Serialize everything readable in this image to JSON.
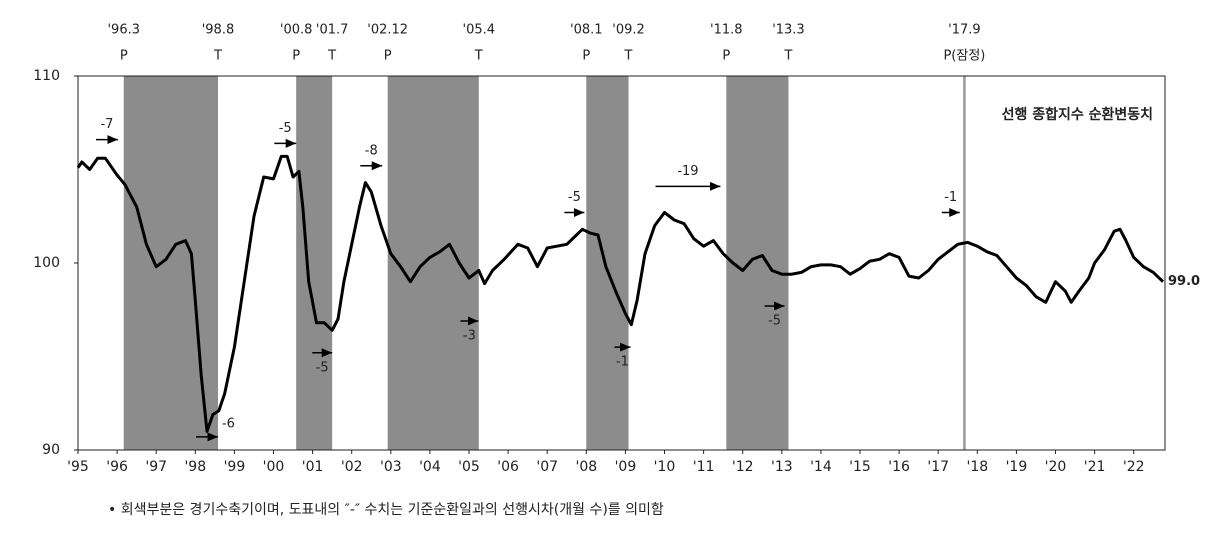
{
  "chart_data": {
    "type": "line",
    "xlim": [
      1995,
      2022.8
    ],
    "ylim": [
      90,
      110
    ],
    "yticks": [
      90,
      100,
      110
    ],
    "xticks": [
      {
        "value": 1995,
        "label": "'95"
      },
      {
        "value": 1996,
        "label": "'96"
      },
      {
        "value": 1997,
        "label": "'97"
      },
      {
        "value": 1998,
        "label": "'98"
      },
      {
        "value": 1999,
        "label": "'99"
      },
      {
        "value": 2000,
        "label": "'00"
      },
      {
        "value": 2001,
        "label": "'01"
      },
      {
        "value": 2002,
        "label": "'02"
      },
      {
        "value": 2003,
        "label": "'03"
      },
      {
        "value": 2004,
        "label": "'04"
      },
      {
        "value": 2005,
        "label": "'05"
      },
      {
        "value": 2006,
        "label": "'06"
      },
      {
        "value": 2007,
        "label": "'07"
      },
      {
        "value": 2008,
        "label": "'08"
      },
      {
        "value": 2009,
        "label": "'09"
      },
      {
        "value": 2010,
        "label": "'10"
      },
      {
        "value": 2011,
        "label": "'11"
      },
      {
        "value": 2012,
        "label": "'12"
      },
      {
        "value": 2013,
        "label": "'13"
      },
      {
        "value": 2014,
        "label": "'14"
      },
      {
        "value": 2015,
        "label": "'15"
      },
      {
        "value": 2016,
        "label": "'16"
      },
      {
        "value": 2017,
        "label": "'17"
      },
      {
        "value": 2018,
        "label": "'18"
      },
      {
        "value": 2019,
        "label": "'19"
      },
      {
        "value": 2020,
        "label": "'20"
      },
      {
        "value": 2021,
        "label": "'21"
      },
      {
        "value": 2022,
        "label": "'22"
      }
    ],
    "grid": false,
    "shade_color": "#8c8c8c",
    "turning_points": [
      {
        "label": "'96.3",
        "phase": "P",
        "x": 1996.17
      },
      {
        "label": "'98.8",
        "phase": "T",
        "x": 1998.58
      },
      {
        "label": "'00.8",
        "phase": "P",
        "x": 2000.58
      },
      {
        "label": "'01.7",
        "phase": "T",
        "x": 2001.5
      },
      {
        "label": "'02.12",
        "phase": "P",
        "x": 2002.92
      },
      {
        "label": "'05.4",
        "phase": "T",
        "x": 2005.25
      },
      {
        "label": "'08.1",
        "phase": "P",
        "x": 2008.0
      },
      {
        "label": "'09.2",
        "phase": "T",
        "x": 2009.08
      },
      {
        "label": "'11.8",
        "phase": "P",
        "x": 2011.58
      },
      {
        "label": "'13.3",
        "phase": "T",
        "x": 2013.17
      },
      {
        "label": "'17.9",
        "phase": "P(잠정)",
        "x": 2017.67
      }
    ],
    "leads": [
      {
        "label": "-7",
        "from": 1995.46,
        "to": 1996.02,
        "y": 106.6,
        "label_pos": "above"
      },
      {
        "label": "-6",
        "from": 1998.02,
        "to": 1998.58,
        "y": 90.7,
        "label_pos": "right"
      },
      {
        "label": "-5",
        "from": 2000.02,
        "to": 2000.58,
        "y": 106.4,
        "label_pos": "above"
      },
      {
        "label": "-5",
        "from": 2000.99,
        "to": 2001.5,
        "y": 95.2,
        "label_pos": "below"
      },
      {
        "label": "-8",
        "from": 2002.22,
        "to": 2002.78,
        "y": 105.2,
        "label_pos": "above"
      },
      {
        "label": "-3",
        "from": 2004.78,
        "to": 2005.24,
        "y": 96.9,
        "label_pos": "below"
      },
      {
        "label": "-5",
        "from": 2007.44,
        "to": 2007.95,
        "y": 102.7,
        "label_pos": "above"
      },
      {
        "label": "-1",
        "from": 2008.72,
        "to": 2009.13,
        "y": 95.5,
        "label_pos": "below"
      },
      {
        "label": "-19",
        "from": 2009.77,
        "to": 2011.43,
        "y": 104.1,
        "label_pos": "above"
      },
      {
        "label": "-5",
        "from": 2012.56,
        "to": 2013.07,
        "y": 97.7,
        "label_pos": "below"
      },
      {
        "label": "-1",
        "from": 2017.09,
        "to": 2017.55,
        "y": 102.7,
        "label_pos": "above"
      }
    ],
    "x": [
      1995.0,
      1995.1,
      1995.3,
      1995.5,
      1995.7,
      1996.0,
      1996.2,
      1996.5,
      1996.75,
      1997.0,
      1997.25,
      1997.5,
      1997.75,
      1997.9,
      1998.0,
      1998.15,
      1998.3,
      1998.45,
      1998.6,
      1998.75,
      1999.0,
      1999.25,
      1999.5,
      1999.75,
      2000.0,
      2000.2,
      2000.35,
      2000.5,
      2000.65,
      2000.75,
      2000.9,
      2001.1,
      2001.3,
      2001.5,
      2001.65,
      2001.8,
      2002.0,
      2002.2,
      2002.35,
      2002.5,
      2002.75,
      2003.0,
      2003.25,
      2003.5,
      2003.75,
      2004.0,
      2004.25,
      2004.5,
      2004.75,
      2005.0,
      2005.25,
      2005.4,
      2005.6,
      2005.9,
      2006.25,
      2006.5,
      2006.75,
      2007.0,
      2007.5,
      2007.75,
      2007.9,
      2008.1,
      2008.3,
      2008.5,
      2008.75,
      2009.0,
      2009.15,
      2009.3,
      2009.5,
      2009.75,
      2010.0,
      2010.25,
      2010.5,
      2010.75,
      2011.0,
      2011.25,
      2011.5,
      2011.75,
      2012.0,
      2012.25,
      2012.5,
      2012.75,
      2013.0,
      2013.25,
      2013.5,
      2013.75,
      2014.0,
      2014.25,
      2014.5,
      2014.75,
      2015.0,
      2015.25,
      2015.5,
      2015.75,
      2016.0,
      2016.25,
      2016.5,
      2016.75,
      2017.0,
      2017.25,
      2017.5,
      2017.75,
      2018.0,
      2018.25,
      2018.5,
      2018.75,
      2019.0,
      2019.25,
      2019.5,
      2019.75,
      2020.0,
      2020.25,
      2020.4,
      2020.6,
      2020.85,
      2021.0,
      2021.25,
      2021.5,
      2021.65,
      2021.8,
      2022.0,
      2022.25,
      2022.5,
      2022.75
    ],
    "series": [
      {
        "name": "선행 종합지수 순환변동치",
        "color": "#000000",
        "values": [
          105.1,
          105.4,
          105.0,
          105.6,
          105.6,
          104.7,
          104.2,
          103.0,
          101.0,
          99.8,
          100.2,
          101.0,
          101.2,
          100.5,
          98.0,
          94.0,
          91.0,
          91.9,
          92.1,
          93.0,
          95.5,
          99.0,
          102.5,
          104.6,
          104.5,
          105.7,
          105.7,
          104.6,
          104.9,
          103.0,
          99.0,
          96.8,
          96.8,
          96.4,
          97.0,
          99.0,
          101.0,
          103.0,
          104.3,
          103.8,
          102.0,
          100.5,
          99.8,
          99.0,
          99.8,
          100.3,
          100.6,
          101.0,
          100.0,
          99.2,
          99.6,
          98.9,
          99.6,
          100.2,
          101.0,
          100.8,
          99.8,
          100.8,
          101.0,
          101.5,
          101.8,
          101.6,
          101.5,
          99.8,
          98.5,
          97.3,
          96.7,
          98.0,
          100.5,
          102.0,
          102.7,
          102.3,
          102.1,
          101.3,
          100.9,
          101.2,
          100.5,
          100.0,
          99.6,
          100.2,
          100.4,
          99.6,
          99.4,
          99.4,
          99.5,
          99.8,
          99.9,
          99.9,
          99.8,
          99.4,
          99.7,
          100.1,
          100.2,
          100.5,
          100.3,
          99.3,
          99.2,
          99.6,
          100.2,
          100.6,
          101.0,
          101.1,
          100.9,
          100.6,
          100.4,
          99.8,
          99.2,
          98.8,
          98.2,
          97.9,
          99.0,
          98.5,
          97.9,
          98.5,
          99.2,
          100.0,
          100.7,
          101.7,
          101.8,
          101.2,
          100.3,
          99.8,
          99.5,
          99.0
        ]
      }
    ],
    "end_label": "99.0",
    "note": "• 회색부분은 경기수축기이며, 도표내의 ″-″ 수치는 기준순환일과의 선행시차(개월 수)를 의미함"
  }
}
